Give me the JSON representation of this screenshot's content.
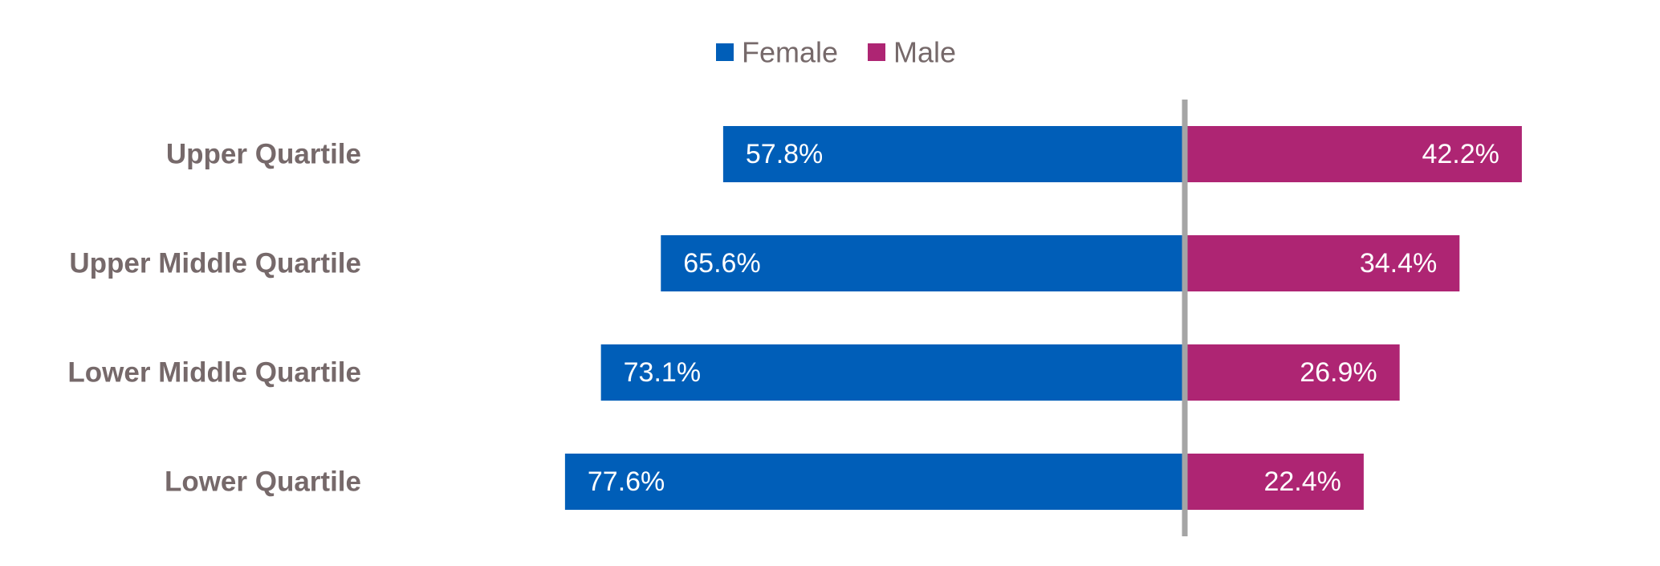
{
  "chart_data": {
    "type": "bar",
    "orientation": "horizontal-diverging",
    "categories": [
      "Upper Quartile",
      "Upper Middle Quartile",
      "Lower Middle Quartile",
      "Lower Quartile"
    ],
    "series": [
      {
        "name": "Female",
        "color": "#005eb8",
        "direction": "left",
        "values": [
          57.8,
          65.6,
          73.1,
          77.6
        ],
        "labels": [
          "57.8%",
          "65.6%",
          "73.1%",
          "77.6%"
        ]
      },
      {
        "name": "Male",
        "color": "#ae2573",
        "direction": "right",
        "values": [
          42.2,
          34.4,
          26.9,
          22.4
        ],
        "labels": [
          "42.2%",
          "34.4%",
          "26.9%",
          "22.4%"
        ]
      }
    ],
    "unit": "%",
    "legend_position": "top-center",
    "center_line_color": "#a5a5a5",
    "grid": false
  }
}
